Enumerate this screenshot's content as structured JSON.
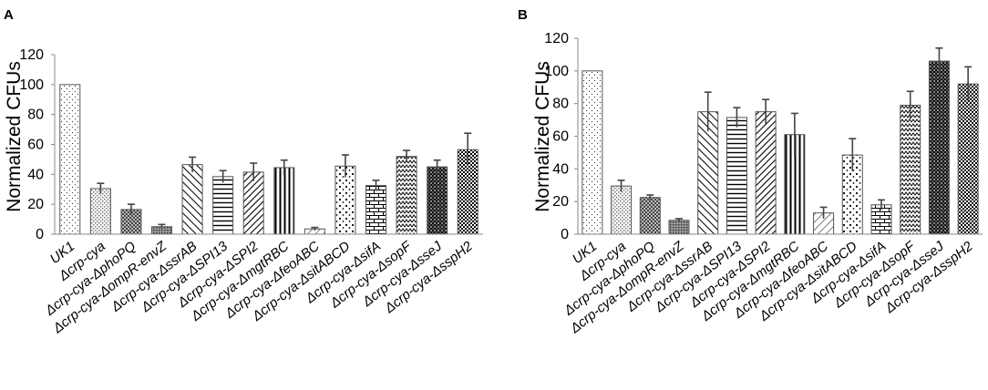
{
  "chart_data": [
    {
      "type": "bar",
      "panel": "A",
      "ylabel": "Normalized CFUs",
      "xlabel": "",
      "ylim": [
        0,
        120
      ],
      "yticks": [
        "0",
        "20",
        "40",
        "60",
        "80",
        "100",
        "120"
      ],
      "categories": [
        "UK1",
        "Δcrp-cya",
        "Δcrp-cya-ΔphoPQ",
        "Δcrp-cya-ΔompR-envZ",
        "Δcrp-cya-ΔssrAB",
        "Δcrp-cya-ΔSPI13",
        "Δcrp-cya-ΔSPI2",
        "Δcrp-cya-ΔmgtRBC",
        "Δcrp-cya-ΔfeoABC",
        "Δcrp-cya-ΔsitABCD",
        "Δcrp-cya-ΔsifA",
        "Δcrp-cya-ΔsopF",
        "Δcrp-cya-ΔsseJ",
        "Δcrp-cya-ΔsspH2"
      ],
      "values": [
        100,
        30.5,
        16.5,
        5,
        46.5,
        38.5,
        41.5,
        44.5,
        3.5,
        45.5,
        32.5,
        52,
        45,
        56.5
      ],
      "errors": [
        0,
        3.5,
        3.5,
        1.5,
        5,
        4,
        6,
        5,
        1,
        7.5,
        3.5,
        4,
        4.5,
        11
      ]
    },
    {
      "type": "bar",
      "panel": "B",
      "ylabel": "Normalized CFUs",
      "xlabel": "",
      "ylim": [
        0,
        120
      ],
      "yticks": [
        "0",
        "20",
        "40",
        "60",
        "80",
        "100",
        "120"
      ],
      "categories": [
        "UK1",
        "Δcrp-cya",
        "Δcrp-cya-ΔphoPQ",
        "Δcrp-cya-ΔompR-envZ",
        "Δcrp-cya-ΔssrAB",
        "Δcrp-cya-ΔSPI13",
        "Δcrp-cya-ΔSPI2",
        "Δcrp-cya-ΔmgtRBC",
        "Δcrp-cya-ΔfeoABC",
        "Δcrp-cya-ΔsitABCD",
        "Δcrp-cya-ΔsifA",
        "Δcrp-cya-ΔsopF",
        "Δcrp-cya-ΔsseJ",
        "Δcrp-cya-ΔsspH2"
      ],
      "values": [
        100,
        29.5,
        22.5,
        8.5,
        75,
        71.5,
        75,
        61,
        13,
        48.5,
        18,
        79,
        106,
        92
      ],
      "errors": [
        0,
        3.5,
        1.5,
        1,
        12,
        6,
        7.5,
        13,
        3.5,
        10,
        3,
        8.5,
        8,
        10.5
      ]
    }
  ]
}
